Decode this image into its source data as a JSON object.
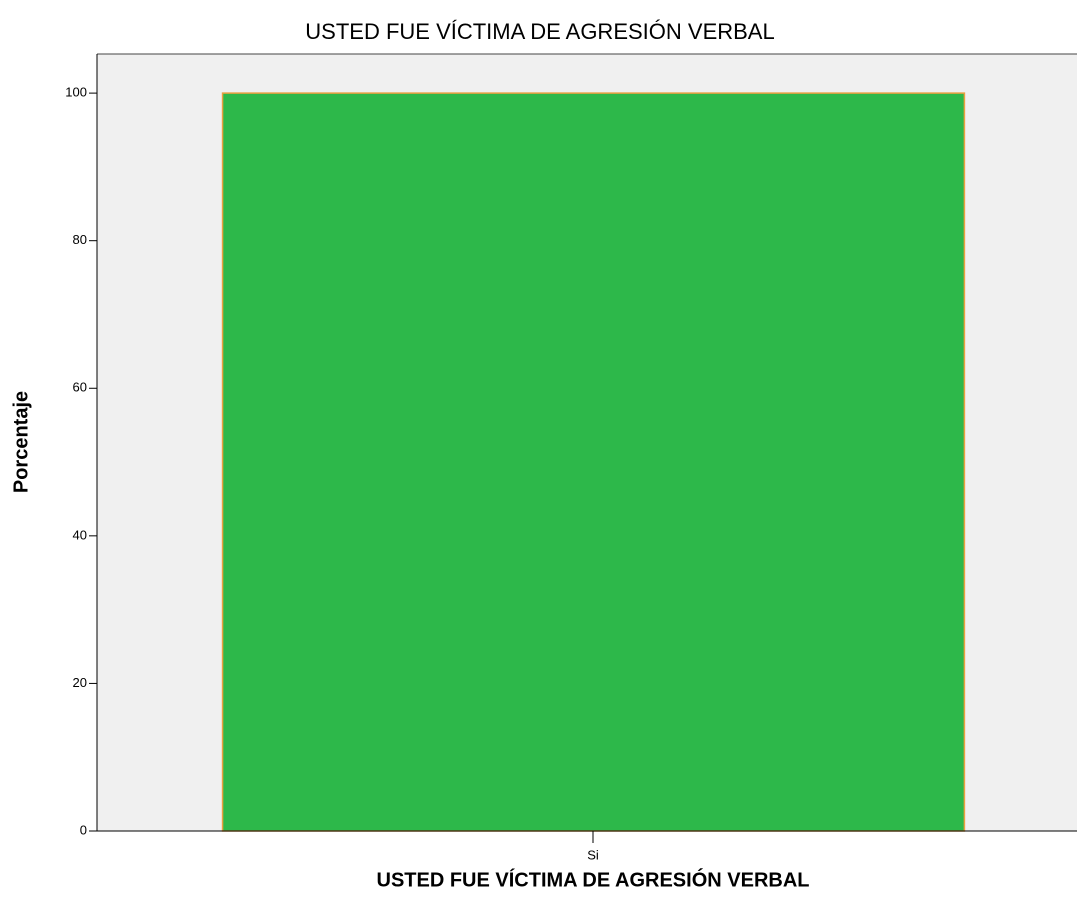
{
  "chart_data": {
    "type": "bar",
    "title": "USTED FUE VÍCTIMA DE AGRESIÓN VERBAL",
    "x_label": "USTED FUE VÍCTIMA DE AGRESIÓN VERBAL",
    "y_label": "Porcentaje",
    "categories": [
      "Si"
    ],
    "values": [
      100
    ],
    "color": "#2db84a",
    "ylim": [
      0,
      105.3
    ],
    "yticks": [
      0,
      20,
      40,
      60,
      80,
      100
    ],
    "grid": false
  }
}
